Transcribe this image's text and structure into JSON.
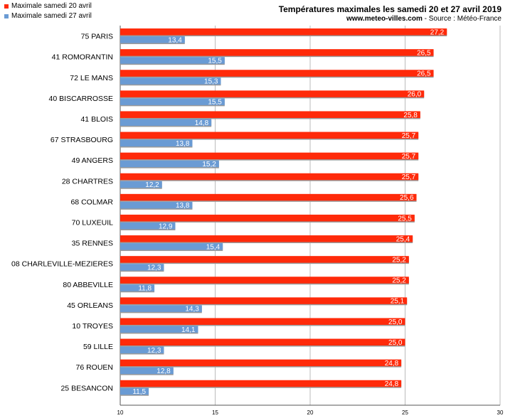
{
  "legend": [
    {
      "label": "Maximale samedi 20 avril",
      "color": "#ff2a0a"
    },
    {
      "label": "Maximale samedi 27 avril",
      "color": "#6a9bd4"
    }
  ],
  "header": {
    "title": "Températures maximales les samedi 20 et 27 avril 2019",
    "site": "www.meteo-villes.com",
    "source": " - Source : Météo-France"
  },
  "chart_data": {
    "type": "bar",
    "orientation": "horizontal",
    "title": "Températures maximales les samedi 20 et 27 avril 2019",
    "categories": [
      "75 PARIS",
      "41 ROMORANTIN",
      "72 LE MANS",
      "40 BISCARROSSE",
      "41 BLOIS",
      "67 STRASBOURG",
      "49 ANGERS",
      "28 CHARTRES",
      "68 COLMAR",
      "70 LUXEUIL",
      "35 RENNES",
      "08 CHARLEVILLE-MEZIERES",
      "80 ABBEVILLE",
      "45 ORLEANS",
      "10 TROYES",
      "59 LILLE",
      "76 ROUEN",
      "25 BESANCON"
    ],
    "series": [
      {
        "name": "Maximale samedi 20 avril",
        "color": "#ff2a0a",
        "values": [
          27.2,
          26.5,
          26.5,
          26.0,
          25.8,
          25.7,
          25.7,
          25.7,
          25.6,
          25.5,
          25.4,
          25.2,
          25.2,
          25.1,
          25.0,
          25.0,
          24.8,
          24.8
        ],
        "labels": [
          "27,2",
          "26,5",
          "26,5",
          "26,0",
          "25,8",
          "25,7",
          "25,7",
          "25,7",
          "25,6",
          "25,5",
          "25,4",
          "25,2",
          "25,2",
          "25,1",
          "25,0",
          "25,0",
          "24,8",
          "24,8"
        ]
      },
      {
        "name": "Maximale samedi 27 avril",
        "color": "#6a9bd4",
        "values": [
          13.4,
          15.5,
          15.3,
          15.5,
          14.8,
          13.8,
          15.2,
          12.2,
          13.8,
          12.9,
          15.4,
          12.3,
          11.8,
          14.3,
          14.1,
          12.3,
          12.8,
          11.5
        ],
        "labels": [
          "13,4",
          "15,5",
          "15,3",
          "15,5",
          "14,8",
          "13,8",
          "15,2",
          "12,2",
          "13,8",
          "12,9",
          "15,4",
          "12,3",
          "11,8",
          "14,3",
          "14,1",
          "12,3",
          "12,8",
          "11,5"
        ]
      }
    ],
    "xlim": [
      10,
      30
    ],
    "xticks": [
      10,
      15,
      20,
      25,
      30
    ],
    "grid": true,
    "legend_position": "top-left"
  }
}
